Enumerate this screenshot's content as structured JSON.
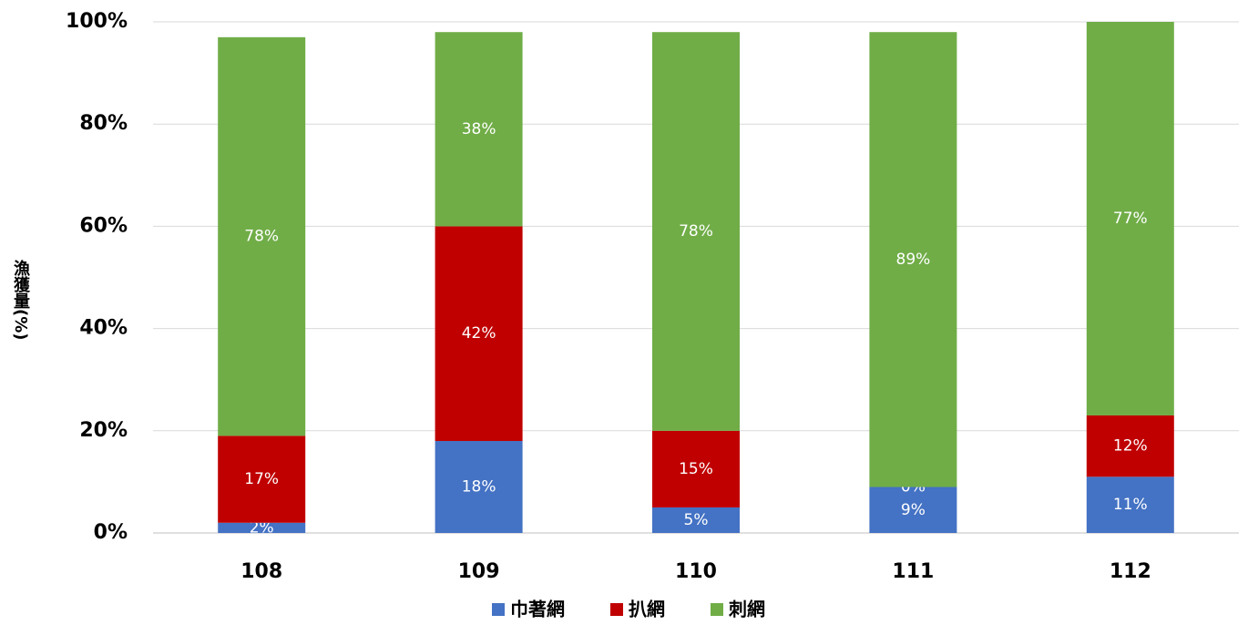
{
  "chart_data": {
    "type": "stacked_bar",
    "y_label": "漁獲量(%)",
    "categories": [
      "108",
      "109",
      "110",
      "111",
      "112"
    ],
    "series": [
      {
        "name": "巾著網",
        "color": "#4472c4",
        "values": [
          2,
          18,
          5,
          9,
          11
        ]
      },
      {
        "name": "扒網",
        "color": "#c00000",
        "values": [
          17,
          42,
          15,
          0,
          12
        ]
      },
      {
        "name": "刺網",
        "color": "#70ad47",
        "values": [
          78,
          38,
          78,
          89,
          77
        ]
      }
    ],
    "ylim": [
      0,
      100
    ],
    "yticks": [
      {
        "value": 0,
        "label": "0%"
      },
      {
        "value": 20,
        "label": "20%"
      },
      {
        "value": 40,
        "label": "40%"
      },
      {
        "value": 60,
        "label": "60%"
      },
      {
        "value": 80,
        "label": "80%"
      },
      {
        "value": 100,
        "label": "100%"
      }
    ],
    "value_labels": [
      [
        "2%",
        "18%",
        "5%",
        "9%",
        "11%"
      ],
      [
        "17%",
        "42%",
        "15%",
        "0%",
        "12%"
      ],
      [
        "78%",
        "38%",
        "78%",
        "89%",
        "77%"
      ]
    ],
    "grid": true,
    "legend": "bottom"
  }
}
